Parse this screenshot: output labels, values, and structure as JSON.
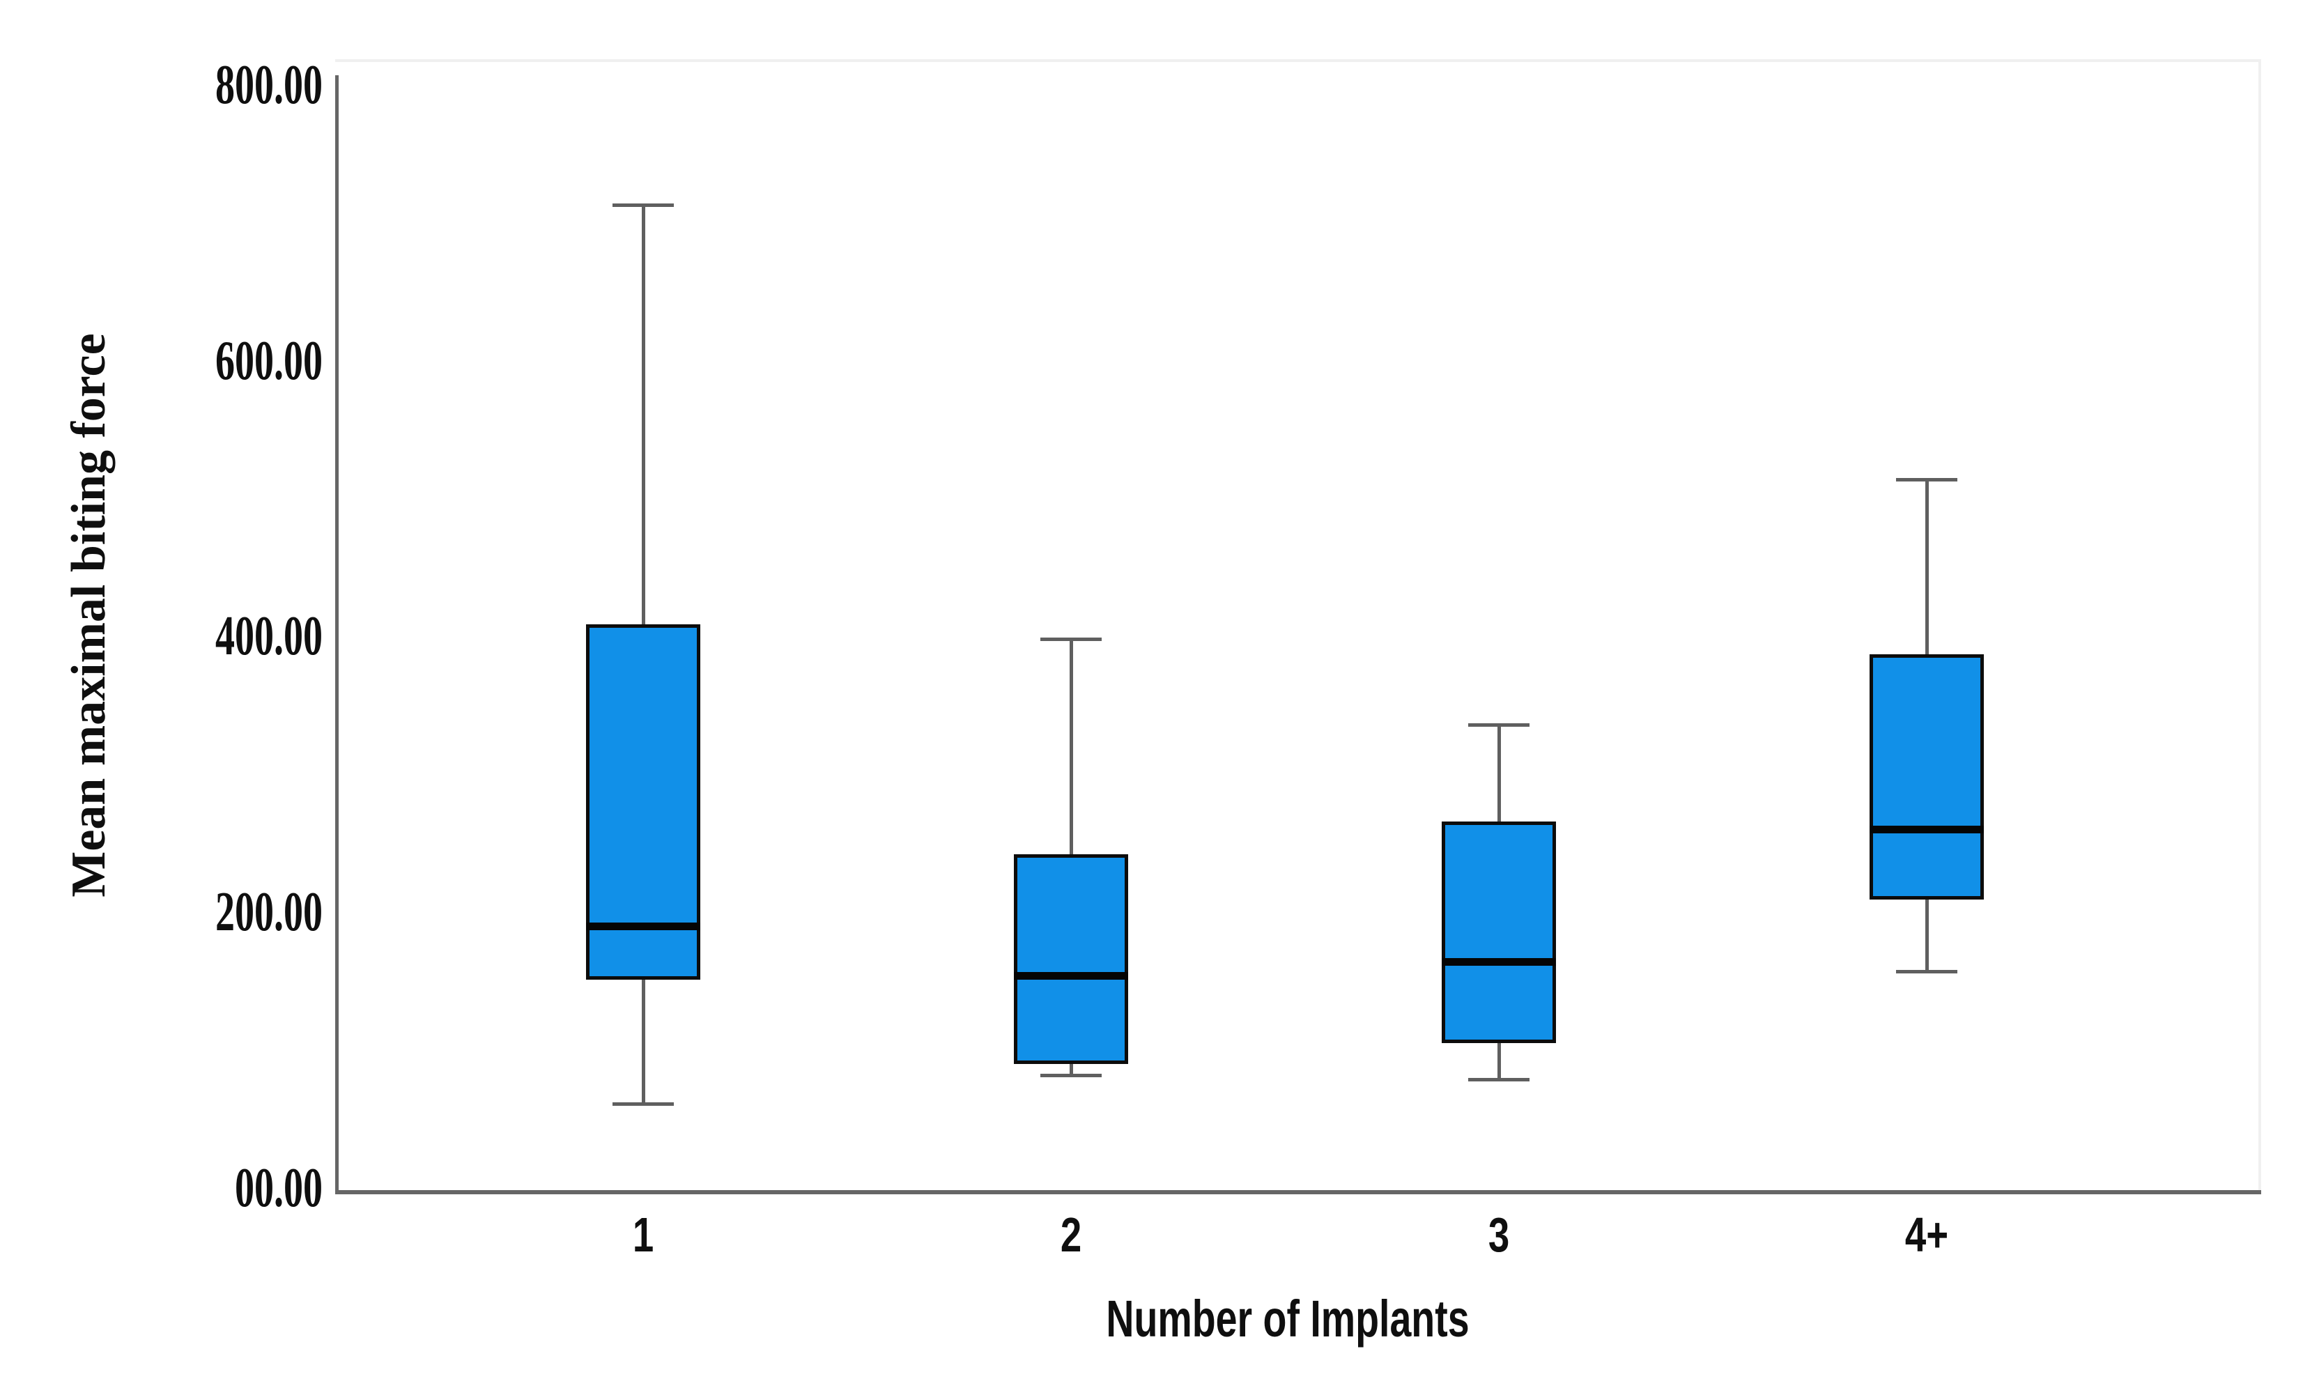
{
  "chart_data": {
    "type": "box",
    "title": "",
    "xlabel": "Number of Implants",
    "ylabel": "Mean maximal biting force",
    "categories": [
      "1",
      "2",
      "3",
      "4+"
    ],
    "ylim": [
      0,
      800
    ],
    "grid": false,
    "legend_position": "none",
    "yticks": [
      {
        "value": 800,
        "label": "800.00"
      },
      {
        "value": 600,
        "label": "600.00"
      },
      {
        "value": 400,
        "label": "400.00"
      },
      {
        "value": 200,
        "label": "200.00"
      },
      {
        "value": 0,
        "label": "00.00"
      }
    ],
    "series": [
      {
        "category": "1",
        "min": 61,
        "q1": 151,
        "median": 190,
        "q3": 409,
        "max": 713
      },
      {
        "category": "2",
        "min": 82,
        "q1": 90,
        "median": 154,
        "q3": 242,
        "max": 398
      },
      {
        "category": "3",
        "min": 79,
        "q1": 105,
        "median": 164,
        "q3": 266,
        "max": 336
      },
      {
        "category": "4+",
        "min": 157,
        "q1": 209,
        "median": 260,
        "q3": 387,
        "max": 514
      }
    ],
    "colors": {
      "box_fill": "#1190e8",
      "box_border": "#0c0c0c",
      "median": "#050505",
      "whisker": "#5f5f5f",
      "axis": "#666666",
      "frame": "#f0f0f0",
      "text": "#0f0f0f",
      "background": "#ffffff"
    }
  }
}
